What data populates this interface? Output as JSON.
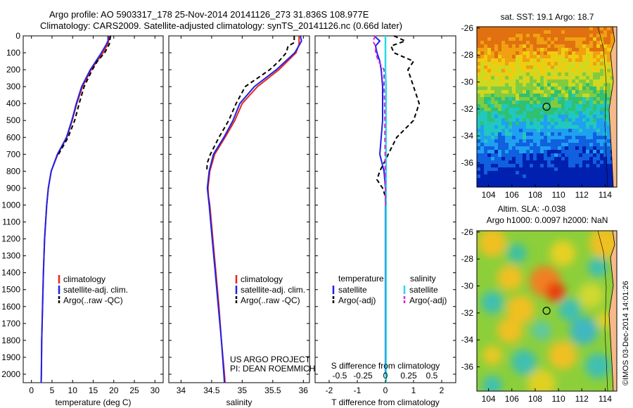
{
  "title": {
    "line1": "Argo profile: AO 5903317_178 25-Nov-2014 20141126_273 31.836S 108.977E",
    "line2": "Climatology: CARS2009. Satellite-adjusted climatology: synTS_20141126.nc (0.66d later)"
  },
  "depth_ticks": [
    0,
    100,
    200,
    300,
    400,
    500,
    600,
    700,
    800,
    900,
    1000,
    1100,
    1200,
    1300,
    1400,
    1500,
    1600,
    1700,
    1800,
    1900,
    2000
  ],
  "colors": {
    "red": "#e8261c",
    "blue": "#1f22e6",
    "black": "#000000",
    "cyan": "#22dde6",
    "magenta": "#e023d8"
  },
  "chart_data": [
    {
      "type": "line",
      "panel": "temperature",
      "xlabel": "temperature (deg C)",
      "xlim": [
        -2,
        32
      ],
      "ylim": [
        2050,
        0
      ],
      "xticks": [
        0,
        5,
        10,
        15,
        20,
        25,
        30
      ],
      "legend": [
        "climatology",
        "satellite-adj. clim.",
        "Argo(..raw -QC)"
      ],
      "legend_position": "lower-middle",
      "series": [
        {
          "name": "climatology",
          "color": "red",
          "depth": [
            0,
            50,
            100,
            200,
            300,
            400,
            500,
            600,
            700,
            800,
            900,
            1000,
            1200,
            1400,
            1600,
            1800,
            2000,
            2050
          ],
          "values": [
            19.0,
            18.5,
            17.4,
            14.5,
            12.4,
            11.0,
            9.9,
            8.6,
            6.4,
            4.8,
            4.1,
            3.7,
            3.2,
            2.9,
            2.7,
            2.5,
            2.4,
            2.35
          ]
        },
        {
          "name": "satellite-adj. clim.",
          "color": "blue",
          "depth": [
            0,
            30,
            50,
            100,
            200,
            300,
            400,
            500,
            600,
            700,
            800,
            900,
            1000,
            1200,
            1400,
            1600,
            1800,
            2000,
            2050
          ],
          "values": [
            18.6,
            18.6,
            18.2,
            17.0,
            14.3,
            12.2,
            10.9,
            9.8,
            8.5,
            6.3,
            4.8,
            4.1,
            3.7,
            3.2,
            2.9,
            2.7,
            2.5,
            2.4,
            2.35
          ]
        },
        {
          "name": "Argo(..raw -QC)",
          "color": "black",
          "dash": true,
          "depth": [
            0,
            50,
            100,
            150,
            200,
            300,
            400,
            500,
            600,
            700
          ],
          "values": [
            19.2,
            18.9,
            17.8,
            16.0,
            14.8,
            12.8,
            11.6,
            10.5,
            8.9,
            6.6
          ]
        }
      ]
    },
    {
      "type": "line",
      "panel": "salinity",
      "xlabel": "salinity",
      "xlim": [
        33.8,
        36.1
      ],
      "ylim": [
        2050,
        0
      ],
      "xticks": [
        34,
        34.5,
        35,
        35.5,
        36
      ],
      "legend": [
        "climatology",
        "satellite-adj. clim.",
        "Argo(..raw -QC)"
      ],
      "legend_position": "lower-right",
      "annotation": [
        "US ARGO PROJECT",
        "PI: DEAN ROEMMICH"
      ],
      "series": [
        {
          "name": "climatology",
          "color": "red",
          "depth": [
            0,
            50,
            100,
            200,
            300,
            400,
            500,
            600,
            700,
            800,
            900,
            950,
            1000,
            1200,
            1400,
            1600,
            1800,
            2000,
            2050
          ],
          "values": [
            35.93,
            35.93,
            35.88,
            35.6,
            35.25,
            35.0,
            34.88,
            34.72,
            34.55,
            34.47,
            34.44,
            34.45,
            34.47,
            34.52,
            34.57,
            34.62,
            34.66,
            34.71,
            34.72
          ]
        },
        {
          "name": "satellite-adj. clim.",
          "color": "blue",
          "depth": [
            0,
            30,
            50,
            100,
            200,
            300,
            400,
            500,
            600,
            700,
            800,
            900,
            1000,
            1200,
            1400,
            1600,
            1800,
            2000,
            2050
          ],
          "values": [
            35.95,
            35.97,
            35.94,
            35.86,
            35.56,
            35.2,
            34.96,
            34.85,
            34.7,
            34.53,
            34.46,
            34.43,
            34.46,
            34.51,
            34.56,
            34.61,
            34.66,
            34.7,
            34.71
          ]
        },
        {
          "name": "Argo(..raw -QC)",
          "color": "black",
          "dash": true,
          "depth": [
            0,
            40,
            60,
            100,
            150,
            200,
            300,
            400,
            500,
            600,
            700,
            750,
            800
          ],
          "values": [
            35.85,
            35.85,
            35.75,
            35.72,
            35.6,
            35.45,
            35.05,
            34.9,
            34.78,
            34.62,
            34.48,
            34.43,
            34.42
          ]
        }
      ]
    },
    {
      "type": "line",
      "panel": "difference",
      "xlabel": "T difference from climatology",
      "xlabel_top": "S difference from climatology",
      "xlim": [
        -2.5,
        2.5
      ],
      "ylim": [
        2050,
        0
      ],
      "xticks": [
        -2,
        -1,
        0,
        1,
        2
      ],
      "s_ticks": [
        "-0.5",
        "-0.25",
        "0",
        "0.25",
        "0.5"
      ],
      "legend_titles": [
        "temperature",
        "salinity"
      ],
      "legend": [
        "satellite",
        "Argo(-adj)",
        "satellite",
        "Argo(-adj)"
      ],
      "series": [
        {
          "name": "satellite",
          "color": "blue",
          "depth": [
            0,
            30,
            60,
            100,
            150,
            200,
            300,
            400,
            500,
            600,
            700,
            800,
            900,
            1000,
            1200,
            1400,
            1600,
            1800,
            2000
          ],
          "values": [
            -0.4,
            -0.2,
            -0.35,
            -0.3,
            -0.2,
            -0.15,
            -0.1,
            -0.1,
            -0.1,
            -0.15,
            -0.2,
            -0.05,
            0,
            0,
            0,
            0,
            0,
            0,
            0
          ]
        },
        {
          "name": "Argo(-adj)",
          "color": "black",
          "dash": true,
          "depth": [
            0,
            30,
            60,
            100,
            150,
            200,
            300,
            400,
            500,
            550,
            600,
            700,
            800,
            850,
            900,
            950,
            1000
          ],
          "values": [
            0.3,
            0.7,
            0.2,
            0.3,
            1.0,
            0.8,
            1.0,
            1.2,
            1.0,
            0.7,
            0.4,
            0.1,
            -0.2,
            -0.3,
            -0.1,
            0.0,
            0.0
          ]
        },
        {
          "name": "satellite",
          "color": "cyan",
          "depth": [
            0,
            50,
            100,
            200,
            300,
            400,
            500,
            600,
            700,
            800,
            1000,
            1200,
            1500,
            1800,
            2050
          ],
          "values": [
            0.0,
            0.0,
            0.0,
            0.0,
            0.02,
            0.02,
            0.02,
            0.02,
            0.02,
            0.02,
            0.02,
            0.02,
            0.02,
            0.02,
            0.02
          ]
        },
        {
          "name": "Argo(-adj)",
          "color": "magenta",
          "dash": true,
          "depth": [
            0,
            30,
            60,
            100,
            150,
            200,
            300,
            400,
            500,
            600,
            700,
            800,
            900,
            1000
          ],
          "values": [
            -0.35,
            -0.45,
            -0.35,
            -0.35,
            -0.25,
            -0.05,
            -0.05,
            -0.03,
            -0.02,
            -0.02,
            -0.01,
            -0.01,
            0,
            0
          ]
        }
      ]
    },
    {
      "type": "heatmap",
      "panel": "sst_map",
      "title": "sat. SST: 19.1  Argo: 18.7",
      "xticks": [
        104,
        106,
        108,
        110,
        112,
        114
      ],
      "yticks": [
        -26,
        -28,
        -30,
        -32,
        -34,
        -36
      ],
      "xlim": [
        103,
        115
      ],
      "ylim": [
        -37.8,
        -25.9
      ],
      "argo_position": [
        108.977,
        -31.836
      ]
    },
    {
      "type": "heatmap",
      "panel": "sla_map",
      "title_line1": "Altim. SLA: -0.038",
      "title_line2": "Argo h1000: 0.0097 h2000: NaN",
      "xticks": [
        104,
        106,
        108,
        110,
        112,
        114
      ],
      "yticks": [
        -26,
        -28,
        -30,
        -32,
        -34,
        -36
      ],
      "xlim": [
        103,
        115
      ],
      "ylim": [
        -37.8,
        -25.9
      ],
      "argo_position": [
        108.977,
        -31.836
      ]
    }
  ],
  "footer": {
    "imos_stamp": "©IMOS 03-Dec-2014 14:01:26"
  }
}
